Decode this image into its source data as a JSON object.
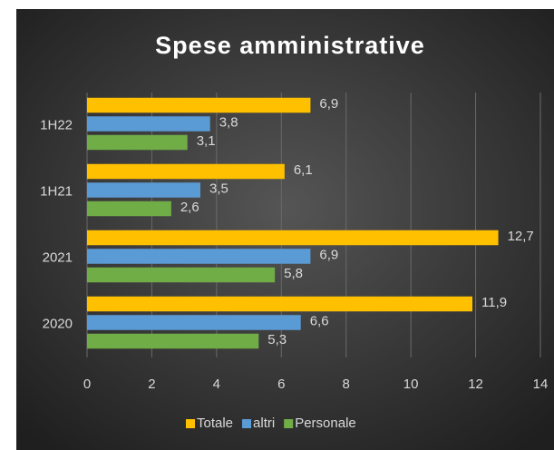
{
  "chart_data": {
    "type": "hbar",
    "title": "Spese amministrative",
    "categories": [
      "1H22",
      "1H21",
      "2021",
      "2020"
    ],
    "series": [
      {
        "name": "Totale",
        "color": "#ffc000",
        "values": [
          6.9,
          6.1,
          12.7,
          11.9
        ],
        "value_labels": [
          "6,9",
          "6,1",
          "12,7",
          "11,9"
        ]
      },
      {
        "name": "altri",
        "color": "#5b9bd5",
        "values": [
          3.8,
          3.5,
          6.9,
          6.6
        ],
        "value_labels": [
          "3,8",
          "3,5",
          "6,9",
          "6,6"
        ]
      },
      {
        "name": "Personale",
        "color": "#70ad47",
        "values": [
          3.1,
          2.6,
          5.8,
          5.3
        ],
        "value_labels": [
          "3,1",
          "2,6",
          "5,8",
          "5,3"
        ]
      }
    ],
    "xlim": [
      0,
      14
    ],
    "xticks": [
      0,
      2,
      4,
      6,
      8,
      10,
      12,
      14
    ],
    "grid": true,
    "legend": "bottom"
  }
}
